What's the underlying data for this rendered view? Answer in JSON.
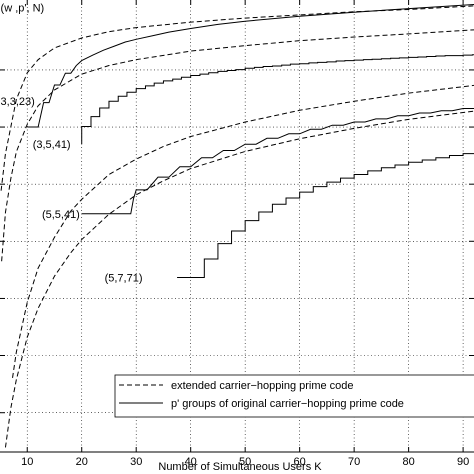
{
  "chart_data": {
    "type": "line",
    "title": "",
    "xlabel": "Number of Simultaneous Users  K",
    "ylabel": "",
    "xlim": [
      5,
      92
    ],
    "ylim": [
      0,
      1
    ],
    "x_ticks": [
      10,
      20,
      30,
      40,
      50,
      60,
      70,
      80,
      90
    ],
    "x_tick_labels": [
      "10",
      "20",
      "30",
      "40",
      "50",
      "60",
      "70",
      "80",
      "90"
    ],
    "y_grid": [
      0.0869,
      0.2135,
      0.3397,
      0.4662,
      0.5925,
      0.7189,
      0.8453
    ],
    "grid": true,
    "legend": {
      "placement": "bottom-right",
      "entries": [
        {
          "label": "extended carrier−hopping prime code",
          "style": "dashed"
        },
        {
          "label": "p' groups of original carrier−hopping prime code",
          "style": "solid"
        }
      ]
    },
    "annotations": [
      {
        "text": "(w ,p', N)",
        "x": 5.1,
        "y": 0.983
      },
      {
        "text": "3,3,23)",
        "x": 5.1,
        "y": 0.776
      },
      {
        "text": "(3,5,41)",
        "x": 11.0,
        "y": 0.681
      },
      {
        "text": "(5,5,41)",
        "x": 12.7,
        "y": 0.527
      },
      {
        "text": "(5,7,71)",
        "x": 24.2,
        "y": 0.386
      }
    ],
    "series": [
      {
        "name": "",
        "style": "dashed",
        "x": [
          5.2,
          6,
          8,
          10,
          12,
          15,
          20,
          25,
          30,
          40,
          50,
          60,
          70,
          80,
          92
        ],
        "y": [
          0.578,
          0.66,
          0.78,
          0.839,
          0.868,
          0.894,
          0.916,
          0.93,
          0.939,
          0.951,
          0.96,
          0.967,
          0.974,
          0.979,
          0.987
        ]
      },
      {
        "name": "",
        "style": "dashed",
        "x": [
          5.3,
          6,
          7,
          8,
          10,
          12,
          15,
          20,
          25,
          30,
          40,
          50,
          60,
          70,
          80,
          92
        ],
        "y": [
          0.422,
          0.53,
          0.606,
          0.664,
          0.725,
          0.766,
          0.801,
          0.836,
          0.855,
          0.868,
          0.887,
          0.899,
          0.91,
          0.918,
          0.925,
          0.934
        ]
      },
      {
        "name": "",
        "style": "dashed",
        "x": [
          7.3,
          8,
          10,
          12,
          15,
          18,
          20,
          25,
          30,
          35,
          40,
          50,
          60,
          70,
          80,
          92
        ],
        "y": [
          0.164,
          0.221,
          0.331,
          0.407,
          0.475,
          0.533,
          0.559,
          0.614,
          0.648,
          0.676,
          0.698,
          0.73,
          0.756,
          0.776,
          0.794,
          0.811
        ]
      },
      {
        "name": "",
        "style": "dashed",
        "x": [
          6.0,
          7,
          8,
          10,
          12,
          15,
          18,
          20,
          25,
          30,
          35,
          40,
          50,
          60,
          70,
          80,
          92
        ],
        "y": [
          0.01,
          0.098,
          0.16,
          0.254,
          0.318,
          0.389,
          0.441,
          0.47,
          0.526,
          0.569,
          0.6,
          0.627,
          0.665,
          0.693,
          0.716,
          0.736,
          0.754
        ]
      },
      {
        "name": "",
        "style": "solid",
        "x": [
          10,
          12,
          13,
          14,
          15,
          16,
          17,
          18,
          19,
          20,
          22,
          24,
          26,
          28,
          30,
          33,
          36,
          40,
          45,
          50,
          60,
          70,
          80,
          92
        ],
        "y": [
          0.719,
          0.719,
          0.773,
          0.773,
          0.812,
          0.812,
          0.838,
          0.838,
          0.855,
          0.866,
          0.878,
          0.889,
          0.898,
          0.907,
          0.913,
          0.921,
          0.929,
          0.937,
          0.946,
          0.953,
          0.964,
          0.973,
          0.981,
          0.99
        ]
      },
      {
        "name": "",
        "style": "solid",
        "x": [
          20.0,
          20.0,
          21.7,
          21.7,
          23.3,
          23.3,
          25.0,
          25.0,
          26.7,
          26.7,
          28.3,
          28.3,
          30.0,
          30.0,
          31.7,
          31.7,
          33.3,
          33.3,
          35.0,
          35.0,
          36.7,
          36.7,
          38.3,
          38.3,
          40.0,
          40.0,
          41.7,
          41.7,
          43.3,
          43.3,
          45.0,
          45.0,
          46.7,
          46.7,
          48.3,
          48.3,
          50.0,
          50.0,
          51.7,
          51.7,
          53.3,
          53.3,
          55.0,
          55.0,
          56.7,
          56.7,
          58.3,
          58.3,
          60.0,
          60.0,
          61.7,
          61.7,
          63.3,
          63.3,
          65.0,
          65.0,
          66.7,
          66.7,
          68.3,
          68.3,
          70.0,
          70.0,
          71.7,
          71.7,
          73.3,
          73.3,
          75.0,
          75.0,
          76.7,
          76.7,
          78.3,
          78.3,
          80.0,
          80.0,
          81.7,
          81.7,
          83.3,
          83.3,
          85.0,
          85.0,
          86.7,
          86.7,
          88.3,
          88.3,
          90.0,
          90.0,
          91.7,
          91.7,
          92.0
        ],
        "y": [
          0.681,
          0.72,
          0.72,
          0.742,
          0.742,
          0.761,
          0.761,
          0.776,
          0.776,
          0.787,
          0.787,
          0.796,
          0.796,
          0.804,
          0.804,
          0.81,
          0.81,
          0.816,
          0.816,
          0.821,
          0.821,
          0.825,
          0.825,
          0.829,
          0.829,
          0.833,
          0.833,
          0.836,
          0.836,
          0.839,
          0.839,
          0.842,
          0.842,
          0.844,
          0.844,
          0.846,
          0.846,
          0.849,
          0.849,
          0.851,
          0.851,
          0.853,
          0.853,
          0.854,
          0.854,
          0.856,
          0.856,
          0.858,
          0.858,
          0.859,
          0.859,
          0.861,
          0.861,
          0.862,
          0.862,
          0.863,
          0.863,
          0.865,
          0.865,
          0.866,
          0.866,
          0.867,
          0.867,
          0.868,
          0.868,
          0.869,
          0.869,
          0.87,
          0.87,
          0.871,
          0.871,
          0.872,
          0.872,
          0.873,
          0.873,
          0.874,
          0.874,
          0.875,
          0.875,
          0.876,
          0.876,
          0.877,
          0.877,
          0.877,
          0.877,
          0.878,
          0.878,
          0.879,
          0.879
        ]
      },
      {
        "name": "",
        "style": "solid",
        "x": [
          20,
          29,
          29.5,
          30,
          32,
          34,
          36,
          38,
          40,
          42,
          44,
          46,
          48,
          50,
          52,
          54,
          56,
          58,
          60,
          62,
          64,
          66,
          68,
          70,
          72,
          74,
          76,
          78,
          80,
          82,
          84,
          86,
          88,
          90,
          92
        ],
        "y": [
          0.527,
          0.527,
          0.56,
          0.58,
          0.58,
          0.608,
          0.608,
          0.631,
          0.631,
          0.651,
          0.651,
          0.667,
          0.667,
          0.681,
          0.681,
          0.694,
          0.694,
          0.704,
          0.704,
          0.714,
          0.714,
          0.723,
          0.723,
          0.73,
          0.73,
          0.737,
          0.737,
          0.744,
          0.744,
          0.75,
          0.75,
          0.755,
          0.755,
          0.76,
          0.76
        ]
      },
      {
        "name": "",
        "style": "solid",
        "x": [
          37.5,
          42.5,
          42.5,
          45.0,
          45.0,
          47.5,
          47.5,
          50.0,
          50.0,
          52.5,
          52.5,
          55.0,
          55.0,
          57.5,
          57.5,
          60.0,
          60.0,
          62.5,
          62.5,
          65.0,
          65.0,
          67.5,
          67.5,
          70.0,
          70.0,
          72.5,
          72.5,
          75.0,
          75.0,
          77.5,
          77.5,
          80.0,
          80.0,
          82.5,
          82.5,
          85.0,
          85.0,
          87.5,
          87.5,
          90.0,
          90.0,
          92.0
        ],
        "y": [
          0.386,
          0.386,
          0.427,
          0.427,
          0.461,
          0.461,
          0.489,
          0.489,
          0.512,
          0.512,
          0.531,
          0.531,
          0.548,
          0.548,
          0.562,
          0.562,
          0.575,
          0.575,
          0.587,
          0.587,
          0.597,
          0.597,
          0.606,
          0.606,
          0.614,
          0.614,
          0.622,
          0.622,
          0.629,
          0.629,
          0.635,
          0.635,
          0.641,
          0.641,
          0.646,
          0.646,
          0.651,
          0.651,
          0.656,
          0.656,
          0.66,
          0.66
        ]
      }
    ]
  }
}
